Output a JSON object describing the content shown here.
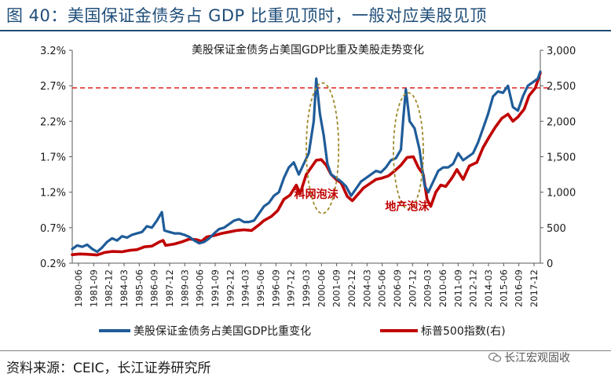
{
  "figure": {
    "title": "图 40：美国保证金债务占 GDP 比重见顶时，一般对应美股见顶",
    "source": "资料来源：CEIC，长江证券研究所",
    "watermark": "长江宏观固收"
  },
  "chart_data": {
    "type": "line",
    "title": "美股保证金债务占美国GDP比重及美股走势变化",
    "categories": [
      "1980-06",
      "1981-09",
      "1982-12",
      "1984-03",
      "1985-06",
      "1986-09",
      "1987-12",
      "1989-03",
      "1990-06",
      "1991-09",
      "1992-12",
      "1994-03",
      "1995-06",
      "1996-09",
      "1997-12",
      "1999-03",
      "2000-06",
      "2001-09",
      "2002-12",
      "2004-03",
      "2005-06",
      "2006-09",
      "2007-12",
      "2009-03",
      "2010-06",
      "2011-09",
      "2012-12",
      "2014-03",
      "2015-06",
      "2016-09",
      "2017-12"
    ],
    "y_left": {
      "ticks": [
        "0.2%",
        "0.7%",
        "1.2%",
        "1.7%",
        "2.2%",
        "2.7%",
        "3.2%"
      ],
      "min": 0.2,
      "max": 3.2
    },
    "y_right": {
      "ticks": [
        "0",
        "500",
        "1,000",
        "1,500",
        "2,000",
        "2,500",
        "3,000"
      ],
      "min": 0,
      "max": 3000
    },
    "reference_line": {
      "axis": "left",
      "value": 2.67,
      "color": "#e02020",
      "style": "dashed"
    },
    "annotations": [
      {
        "text": "科网泡沫",
        "x": 2000.0,
        "y_left": 1.12
      },
      {
        "text": "地产泡沫",
        "x": 2007.3,
        "y_left": 0.95
      }
    ],
    "ellipses": [
      {
        "x_center": 2000.5,
        "y_left_center": 1.82,
        "x_radius": 1.3,
        "y_left_radius": 0.92
      },
      {
        "x_center": 2007.4,
        "y_left_center": 1.78,
        "x_radius": 1.2,
        "y_left_radius": 0.82
      }
    ],
    "series": [
      {
        "name": "美股保证金债务占美国GDP比重变化",
        "axis": "left",
        "color": "#1f5c99",
        "points": [
          [
            1980.4,
            0.4
          ],
          [
            1980.8,
            0.45
          ],
          [
            1981.2,
            0.43
          ],
          [
            1981.6,
            0.46
          ],
          [
            1982.0,
            0.4
          ],
          [
            1982.4,
            0.36
          ],
          [
            1982.8,
            0.42
          ],
          [
            1983.2,
            0.5
          ],
          [
            1983.6,
            0.55
          ],
          [
            1984.0,
            0.52
          ],
          [
            1984.4,
            0.58
          ],
          [
            1984.8,
            0.56
          ],
          [
            1985.2,
            0.6
          ],
          [
            1985.6,
            0.62
          ],
          [
            1986.0,
            0.64
          ],
          [
            1986.4,
            0.72
          ],
          [
            1986.8,
            0.7
          ],
          [
            1987.2,
            0.8
          ],
          [
            1987.6,
            0.92
          ],
          [
            1987.8,
            0.66
          ],
          [
            1988.2,
            0.64
          ],
          [
            1988.6,
            0.62
          ],
          [
            1989.0,
            0.62
          ],
          [
            1989.4,
            0.6
          ],
          [
            1989.8,
            0.57
          ],
          [
            1990.2,
            0.52
          ],
          [
            1990.6,
            0.48
          ],
          [
            1991.0,
            0.5
          ],
          [
            1991.4,
            0.55
          ],
          [
            1991.8,
            0.62
          ],
          [
            1992.2,
            0.68
          ],
          [
            1992.6,
            0.7
          ],
          [
            1993.0,
            0.75
          ],
          [
            1993.4,
            0.8
          ],
          [
            1993.8,
            0.82
          ],
          [
            1994.2,
            0.78
          ],
          [
            1994.6,
            0.78
          ],
          [
            1995.0,
            0.8
          ],
          [
            1995.4,
            0.9
          ],
          [
            1995.8,
            1.0
          ],
          [
            1996.2,
            1.05
          ],
          [
            1996.6,
            1.15
          ],
          [
            1997.0,
            1.2
          ],
          [
            1997.4,
            1.4
          ],
          [
            1997.8,
            1.55
          ],
          [
            1998.2,
            1.62
          ],
          [
            1998.6,
            1.45
          ],
          [
            1999.0,
            1.6
          ],
          [
            1999.4,
            1.75
          ],
          [
            1999.8,
            2.2
          ],
          [
            2000.0,
            2.8
          ],
          [
            2000.3,
            2.3
          ],
          [
            2000.6,
            2.0
          ],
          [
            2000.9,
            1.6
          ],
          [
            2001.2,
            1.45
          ],
          [
            2001.6,
            1.4
          ],
          [
            2002.0,
            1.35
          ],
          [
            2002.4,
            1.28
          ],
          [
            2002.8,
            1.15
          ],
          [
            2003.2,
            1.25
          ],
          [
            2003.6,
            1.35
          ],
          [
            2004.0,
            1.4
          ],
          [
            2004.4,
            1.45
          ],
          [
            2004.8,
            1.5
          ],
          [
            2005.2,
            1.48
          ],
          [
            2005.6,
            1.55
          ],
          [
            2006.0,
            1.65
          ],
          [
            2006.4,
            1.68
          ],
          [
            2006.8,
            1.8
          ],
          [
            2007.0,
            2.25
          ],
          [
            2007.2,
            2.65
          ],
          [
            2007.5,
            2.2
          ],
          [
            2007.9,
            2.1
          ],
          [
            2008.3,
            1.8
          ],
          [
            2008.7,
            1.3
          ],
          [
            2009.0,
            1.2
          ],
          [
            2009.4,
            1.35
          ],
          [
            2009.8,
            1.5
          ],
          [
            2010.2,
            1.55
          ],
          [
            2010.6,
            1.55
          ],
          [
            2011.0,
            1.6
          ],
          [
            2011.4,
            1.75
          ],
          [
            2011.8,
            1.65
          ],
          [
            2012.2,
            1.7
          ],
          [
            2012.6,
            1.75
          ],
          [
            2013.0,
            1.9
          ],
          [
            2013.4,
            2.1
          ],
          [
            2013.8,
            2.3
          ],
          [
            2014.2,
            2.55
          ],
          [
            2014.6,
            2.62
          ],
          [
            2015.0,
            2.6
          ],
          [
            2015.4,
            2.7
          ],
          [
            2015.8,
            2.4
          ],
          [
            2016.2,
            2.35
          ],
          [
            2016.6,
            2.55
          ],
          [
            2017.0,
            2.7
          ],
          [
            2017.4,
            2.75
          ],
          [
            2017.8,
            2.8
          ],
          [
            2018.0,
            2.9
          ]
        ]
      },
      {
        "name": "标普500指数(右)",
        "axis": "right",
        "color": "#c00000",
        "points": [
          [
            1980.4,
            120
          ],
          [
            1981.0,
            130
          ],
          [
            1981.6,
            125
          ],
          [
            1982.4,
            115
          ],
          [
            1983.0,
            150
          ],
          [
            1983.6,
            165
          ],
          [
            1984.4,
            160
          ],
          [
            1985.0,
            180
          ],
          [
            1985.6,
            190
          ],
          [
            1986.2,
            230
          ],
          [
            1986.8,
            240
          ],
          [
            1987.4,
            300
          ],
          [
            1987.7,
            320
          ],
          [
            1987.9,
            250
          ],
          [
            1988.6,
            270
          ],
          [
            1989.2,
            300
          ],
          [
            1989.8,
            340
          ],
          [
            1990.4,
            330
          ],
          [
            1990.8,
            310
          ],
          [
            1991.2,
            370
          ],
          [
            1991.8,
            390
          ],
          [
            1992.4,
            420
          ],
          [
            1993.0,
            440
          ],
          [
            1993.6,
            460
          ],
          [
            1994.2,
            470
          ],
          [
            1994.8,
            460
          ],
          [
            1995.4,
            540
          ],
          [
            1995.8,
            600
          ],
          [
            1996.4,
            660
          ],
          [
            1996.9,
            740
          ],
          [
            1997.4,
            900
          ],
          [
            1997.9,
            960
          ],
          [
            1998.4,
            1100
          ],
          [
            1998.7,
            980
          ],
          [
            1999.2,
            1250
          ],
          [
            1999.6,
            1350
          ],
          [
            2000.0,
            1450
          ],
          [
            2000.4,
            1460
          ],
          [
            2000.8,
            1380
          ],
          [
            2001.2,
            1250
          ],
          [
            2001.6,
            1180
          ],
          [
            2002.0,
            1130
          ],
          [
            2002.5,
            940
          ],
          [
            2002.9,
            880
          ],
          [
            2003.3,
            960
          ],
          [
            2003.8,
            1060
          ],
          [
            2004.3,
            1120
          ],
          [
            2004.8,
            1180
          ],
          [
            2005.3,
            1200
          ],
          [
            2005.8,
            1230
          ],
          [
            2006.3,
            1300
          ],
          [
            2006.8,
            1380
          ],
          [
            2007.3,
            1490
          ],
          [
            2007.8,
            1500
          ],
          [
            2008.2,
            1350
          ],
          [
            2008.6,
            1250
          ],
          [
            2008.9,
            900
          ],
          [
            2009.2,
            800
          ],
          [
            2009.6,
            1000
          ],
          [
            2010.0,
            1100
          ],
          [
            2010.4,
            1080
          ],
          [
            2010.9,
            1200
          ],
          [
            2011.3,
            1320
          ],
          [
            2011.8,
            1180
          ],
          [
            2012.3,
            1370
          ],
          [
            2012.9,
            1420
          ],
          [
            2013.4,
            1630
          ],
          [
            2013.9,
            1780
          ],
          [
            2014.4,
            1920
          ],
          [
            2014.9,
            2040
          ],
          [
            2015.4,
            2100
          ],
          [
            2015.8,
            2000
          ],
          [
            2016.2,
            2060
          ],
          [
            2016.7,
            2170
          ],
          [
            2017.1,
            2360
          ],
          [
            2017.6,
            2470
          ],
          [
            2018.0,
            2680
          ]
        ]
      }
    ]
  }
}
